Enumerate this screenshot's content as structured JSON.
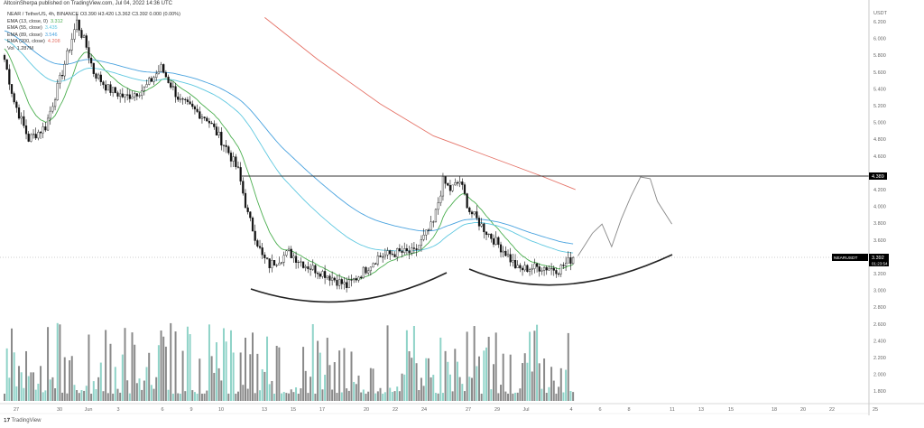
{
  "header": {
    "published": "AltcoinSherpa published on TradingView.com, Jul 04, 2022 14:36 UTC"
  },
  "legend": {
    "symbol": "NEAR / TetherUS, 4h, BINANCE",
    "ohlc": "O3.390 H3.420 L3.362 C3.392 0.000 (0.00%)",
    "ema13": {
      "label": "EMA (13, close, 0)",
      "value": "3.312",
      "color": "#4caf50"
    },
    "ema55": {
      "label": "EMA (55, close)",
      "value": "3.435",
      "color": "#5fc8e0"
    },
    "ema89": {
      "label": "EMA (89, close)",
      "value": "3.546",
      "color": "#4aa3df"
    },
    "ema200": {
      "label": "EMA (200, close)",
      "value": "4.208",
      "color": "#e57368"
    },
    "vol": {
      "label": "Vol",
      "value": "1.287M"
    }
  },
  "price_axis": {
    "unit": "USDT",
    "ticks": [
      "6.200",
      "6.000",
      "5.800",
      "5.600",
      "5.400",
      "5.200",
      "5.000",
      "4.800",
      "4.600",
      "4.200",
      "4.000",
      "3.800",
      "3.600",
      "3.200",
      "3.000",
      "2.800",
      "2.600",
      "2.400",
      "2.200",
      "2.000",
      "1.800"
    ],
    "level_label": "4.389",
    "last_price": "3.392",
    "countdown": "01:23:54",
    "symbol_tag": "NEARUSDT"
  },
  "time_axis": {
    "ticks": [
      "27",
      "30",
      "Jun",
      "3",
      "6",
      "9",
      "10",
      "13",
      "15",
      "17",
      "20",
      "22",
      "24",
      "27",
      "29",
      "Jul",
      "4",
      "6",
      "8",
      "11",
      "13",
      "15",
      "18",
      "20",
      "22",
      "25"
    ]
  },
  "branding": {
    "logo": "TradingView"
  },
  "chart_data": {
    "type": "candlestick",
    "title": "NEAR / TetherUS, 4h, BINANCE",
    "ylim": [
      1.7,
      6.3
    ],
    "resistance_level": 4.389,
    "close_waypoints": [
      [
        0,
        5.75
      ],
      [
        4,
        5.25
      ],
      [
        10,
        4.8
      ],
      [
        17,
        4.95
      ],
      [
        24,
        5.6
      ],
      [
        30,
        6.2
      ],
      [
        34,
        5.9
      ],
      [
        37,
        5.6
      ],
      [
        43,
        5.4
      ],
      [
        50,
        5.3
      ],
      [
        58,
        5.4
      ],
      [
        65,
        5.65
      ],
      [
        73,
        5.25
      ],
      [
        84,
        5.05
      ],
      [
        92,
        4.7
      ],
      [
        97,
        4.42
      ],
      [
        101,
        3.9
      ],
      [
        107,
        3.4
      ],
      [
        110,
        3.3
      ],
      [
        118,
        3.45
      ],
      [
        125,
        3.3
      ],
      [
        133,
        3.2
      ],
      [
        142,
        3.05
      ],
      [
        148,
        3.2
      ],
      [
        155,
        3.4
      ],
      [
        163,
        3.45
      ],
      [
        170,
        3.45
      ],
      [
        178,
        3.8
      ],
      [
        182,
        4.3
      ],
      [
        185,
        4.2
      ],
      [
        189,
        4.3
      ],
      [
        193,
        3.95
      ],
      [
        200,
        3.7
      ],
      [
        208,
        3.45
      ],
      [
        213,
        3.25
      ],
      [
        223,
        3.28
      ],
      [
        230,
        3.25
      ],
      [
        236,
        3.39
      ]
    ],
    "ema200_path": [
      [
        108,
        6.25
      ],
      [
        130,
        5.75
      ],
      [
        156,
        5.22
      ],
      [
        178,
        4.84
      ],
      [
        193,
        4.68
      ],
      [
        208,
        4.52
      ],
      [
        223,
        4.36
      ],
      [
        237,
        4.2
      ]
    ],
    "forecast_path": [
      [
        238,
        3.41
      ],
      [
        244,
        3.68
      ],
      [
        248,
        3.79
      ],
      [
        252,
        3.52
      ],
      [
        256,
        3.85
      ],
      [
        260,
        4.12
      ],
      [
        264,
        4.35
      ],
      [
        268,
        4.33
      ],
      [
        271,
        4.06
      ],
      [
        277,
        3.79
      ]
    ]
  }
}
